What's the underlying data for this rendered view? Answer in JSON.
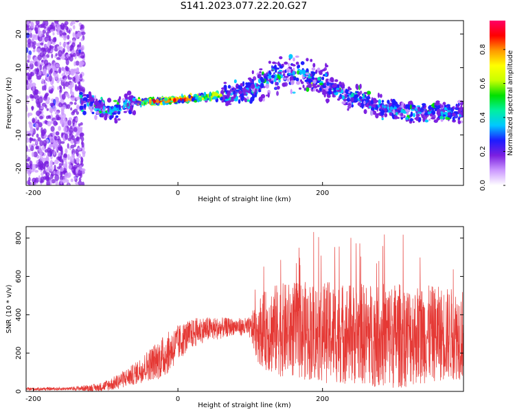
{
  "title": "S141.2023.077.22.20.G27",
  "chart_data": [
    {
      "type": "heatmap",
      "xlabel": "Height of straight line (km)",
      "ylabel": "Frequency (Hz)",
      "xlim": [
        -210,
        395
      ],
      "ylim": [
        -25,
        24
      ],
      "xticks": [
        -200,
        0,
        200
      ],
      "yticks": [
        20,
        10,
        0,
        -10,
        -20
      ],
      "colorbar": {
        "label": "Normalized spectral amplitude",
        "range": [
          0,
          0.97
        ],
        "ticks": [
          "0.0",
          "0.2",
          "0.4",
          "0.6",
          "0.8"
        ],
        "colormap": [
          "#ffffff",
          "#cc99ff",
          "#7b1fe0",
          "#1c1cff",
          "#00c8ff",
          "#00f0a0",
          "#00e000",
          "#c8ff00",
          "#ffff00",
          "#ff9900",
          "#ff0000",
          "#ff0066"
        ]
      },
      "ridge": {
        "x": [
          -210,
          -180,
          -150,
          -130,
          -110,
          -90,
          -70,
          -50,
          -30,
          0,
          30,
          50,
          80,
          110,
          140,
          170,
          200,
          230,
          260,
          290,
          320,
          350,
          380,
          395
        ],
        "y": [
          0,
          0,
          0,
          0,
          -2,
          -3,
          -1,
          0,
          0,
          0.5,
          1,
          1.5,
          2,
          5,
          8,
          8,
          6,
          2,
          0,
          -2,
          -3,
          -3,
          -3,
          -4
        ]
      }
    },
    {
      "type": "line",
      "xlabel": "Height of straight line (km)",
      "ylabel": "SNR (10 * v/v)",
      "xlim": [
        -210,
        395
      ],
      "ylim": [
        0,
        860
      ],
      "xticks": [
        -200,
        0,
        200
      ],
      "yticks": [
        0,
        200,
        400,
        600,
        800
      ],
      "color": "#e53935",
      "envelope": {
        "x": [
          -210,
          -150,
          -110,
          -90,
          -60,
          -40,
          -20,
          0,
          10,
          30,
          60,
          80,
          100,
          110,
          130,
          160,
          200,
          250,
          300,
          350,
          395
        ],
        "mean": [
          12,
          14,
          20,
          40,
          90,
          140,
          180,
          250,
          280,
          320,
          330,
          340,
          330,
          320,
          320,
          320,
          310,
          300,
          290,
          300,
          300
        ],
        "spread": [
          6,
          6,
          15,
          25,
          40,
          60,
          80,
          70,
          60,
          50,
          40,
          30,
          40,
          120,
          170,
          180,
          190,
          190,
          200,
          180,
          170
        ]
      },
      "peak": 860
    }
  ]
}
